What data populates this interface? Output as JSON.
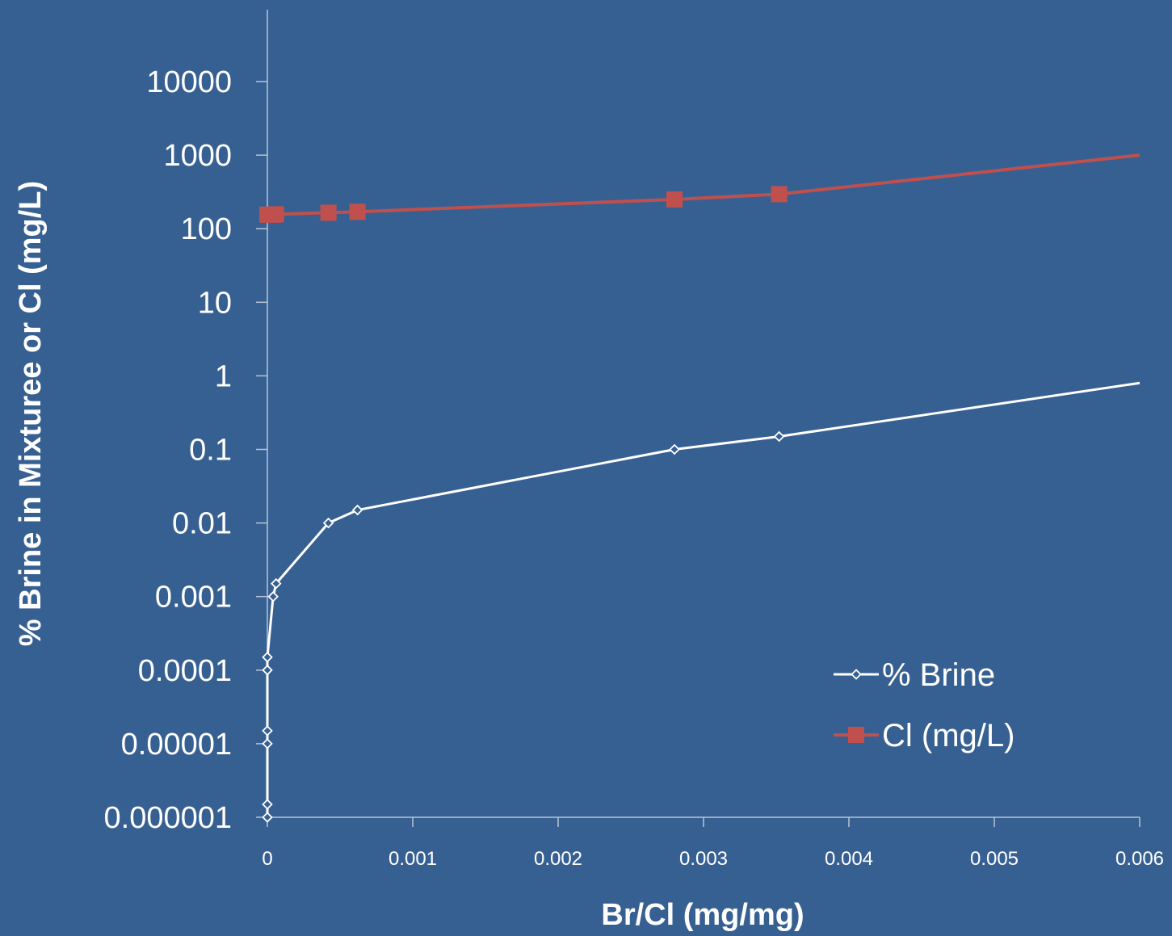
{
  "chart_data": {
    "type": "line",
    "title": "",
    "xlabel": "Br/Cl (mg/mg)",
    "ylabel": "% Brine in Mixturee or Cl (mg/L)",
    "xlim": [
      0,
      0.006
    ],
    "ylim": [
      1e-06,
      100000
    ],
    "y_scale": "log",
    "grid": false,
    "legend_position": "bottom-right",
    "x_ticks": [
      "0",
      "0.001",
      "0.002",
      "0.003",
      "0.004",
      "0.005",
      "0.006"
    ],
    "y_ticks": [
      "0.000001",
      "0.00001",
      "0.0001",
      "0.001",
      "0.01",
      "0.1",
      "1",
      "10",
      "100",
      "1000",
      "10000"
    ],
    "series": [
      {
        "name": "% Brine",
        "color": "#ffffff",
        "marker": "diamond",
        "points": [
          [
            0,
            1e-06
          ],
          [
            0,
            1.5e-06
          ],
          [
            0,
            1e-05
          ],
          [
            0,
            1.5e-05
          ],
          [
            0,
            0.0001
          ],
          [
            0,
            0.00015
          ],
          [
            4e-05,
            0.001
          ],
          [
            6e-05,
            0.0015
          ],
          [
            0.00042,
            0.01
          ],
          [
            0.00062,
            0.015
          ],
          [
            0.0028,
            0.1
          ],
          [
            0.00352,
            0.15
          ],
          [
            0.006,
            0.8
          ]
        ]
      },
      {
        "name": "Cl (mg/L)",
        "color": "#c0504d",
        "marker": "square",
        "points": [
          [
            0,
            155
          ],
          [
            4e-05,
            155
          ],
          [
            6e-05,
            157
          ],
          [
            0.00042,
            165
          ],
          [
            0.00062,
            170
          ],
          [
            0.0028,
            250
          ],
          [
            0.00352,
            295
          ],
          [
            0.006,
            1000
          ]
        ]
      }
    ]
  }
}
